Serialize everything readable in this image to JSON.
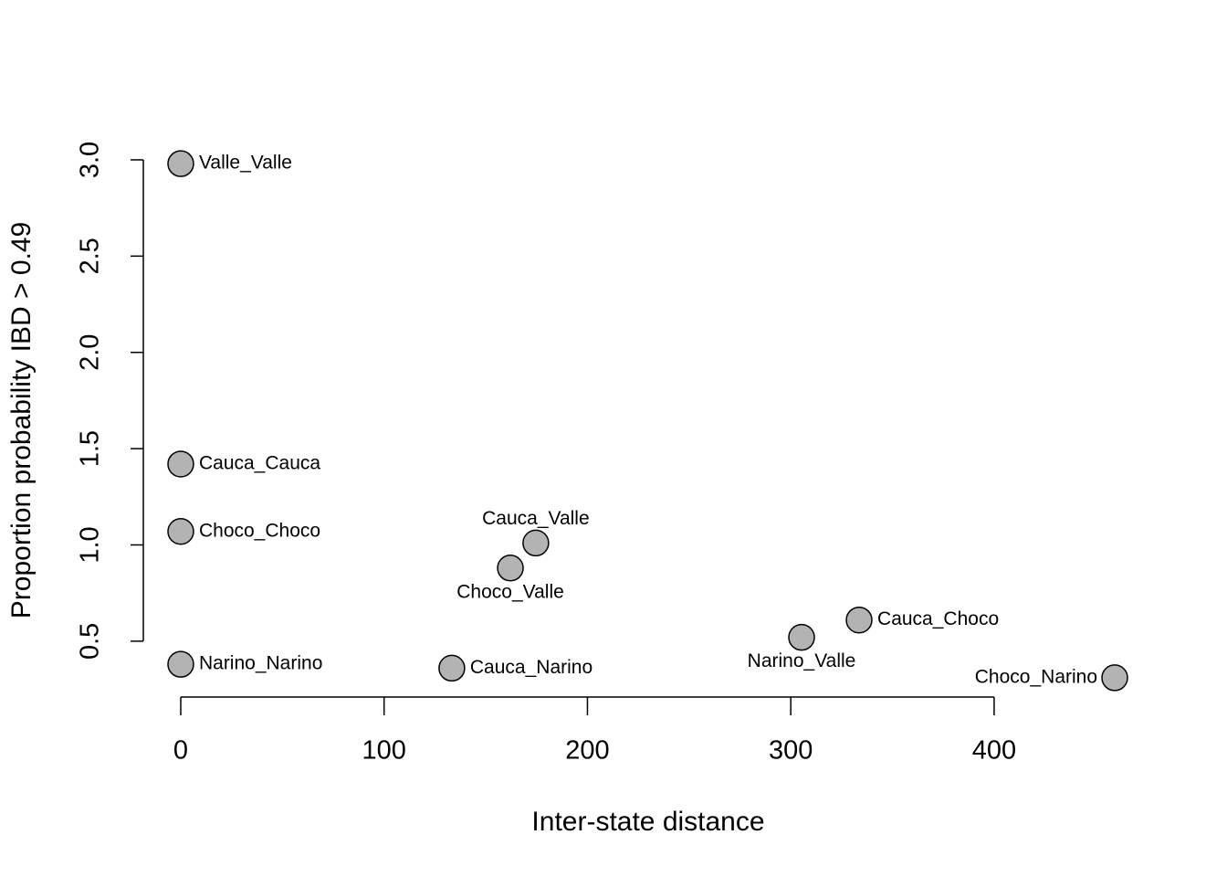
{
  "chart_data": {
    "type": "scatter",
    "x_label": "Inter-state distance",
    "y_label": "Proportion probability IBD > 0.49",
    "point_labels": [
      "Valle_Valle",
      "Cauca_Cauca",
      "Choco_Choco",
      "Narino_Narino",
      "Cauca_Narino",
      "Choco_Valle",
      "Cauca_Valle",
      "Narino_Valle",
      "Cauca_Choco",
      "Choco_Narino"
    ],
    "x": [
      0,
      0,
      0,
      0,
      133.3,
      162.1,
      174.6,
      305.3,
      333.6,
      459.3
    ],
    "values": [
      2.98,
      1.42,
      1.07,
      0.38,
      0.36,
      0.88,
      1.01,
      0.52,
      0.61,
      0.31
    ],
    "color": "#b3b3b3",
    "xlim": [
      -18.4,
      477.7
    ],
    "ylim": [
      0.21,
      3.09
    ],
    "xticks": [
      0,
      100,
      200,
      300,
      400
    ],
    "yticks": [
      0.5,
      {
        "value": 1.0,
        "label": "1.0"
      },
      1.5,
      {
        "value": 2.0,
        "label": "2.0"
      },
      2.5,
      {
        "value": 3.0,
        "label": "3.0"
      }
    ]
  }
}
